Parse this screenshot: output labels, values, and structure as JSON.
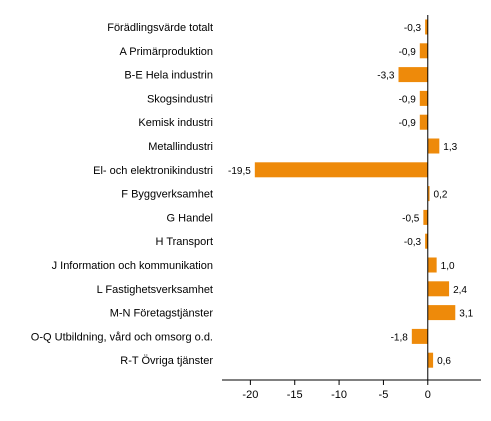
{
  "chart_data": {
    "type": "bar",
    "orientation": "horizontal",
    "categories": [
      "Förädlingsvärde totalt",
      "A Primärproduktion",
      "B-E Hela industrin",
      "Skogsindustri",
      "Kemisk industri",
      "Metallindustri",
      "El- och elektronikindustri",
      "F Byggverksamhet",
      "G Handel",
      "H Transport",
      "J Information och kommunikation",
      "L Fastighetsverksamhet",
      "M-N Företagstjänster",
      "O-Q Utbildning, vård och omsorg o.d.",
      "R-T Övriga tjänster"
    ],
    "values": [
      -0.3,
      -0.9,
      -3.3,
      -0.9,
      -0.9,
      1.3,
      -19.5,
      0.2,
      -0.5,
      -0.3,
      1.0,
      2.4,
      3.1,
      -1.8,
      0.6
    ],
    "value_labels": [
      "-0,3",
      "-0,9",
      "-3,3",
      "-0,9",
      "-0,9",
      "1,3",
      "-19,5",
      "0,2",
      "-0,5",
      "-0,3",
      "1,0",
      "2,4",
      "3,1",
      "-1,8",
      "0,6"
    ],
    "xticks": [
      -20,
      -15,
      -10,
      -5,
      0
    ],
    "xtick_labels": [
      "-20",
      "-15",
      "-10",
      "-5",
      "0"
    ],
    "xlim": [
      -23.2,
      6.0
    ],
    "bar_color": "#ee8a0a",
    "grid": false,
    "title": "",
    "xlabel": "",
    "ylabel": ""
  }
}
